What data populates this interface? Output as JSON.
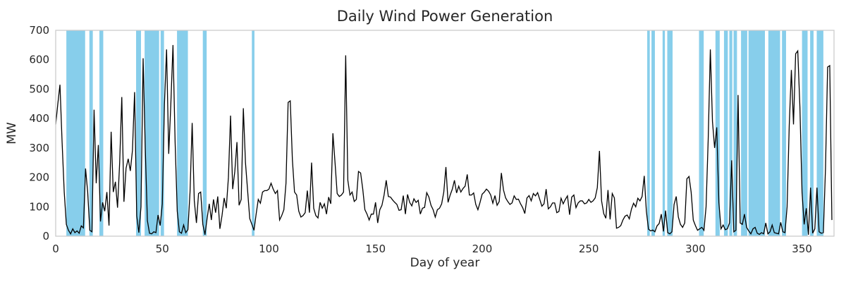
{
  "chart_data": {
    "type": "line",
    "title": "Daily Wind Power Generation",
    "xlabel": "Day of year",
    "ylabel": "MW",
    "xlim": [
      0,
      365
    ],
    "ylim": [
      0,
      700
    ],
    "xticks": [
      0,
      50,
      100,
      150,
      200,
      250,
      300,
      350
    ],
    "yticks": [
      0,
      100,
      200,
      300,
      400,
      500,
      600,
      700
    ],
    "grid": false,
    "legend": "none",
    "line_color": "#000000",
    "band_color": "#87ceeb",
    "text_color": "#262626",
    "spine_color": "#cccccc",
    "x_meaning": "day of year (index of values array)",
    "highlight_bands": [
      [
        5,
        13.8
      ],
      [
        15.8,
        17.4
      ],
      [
        20.5,
        22.3
      ],
      [
        37.7,
        40
      ],
      [
        41.7,
        48.5
      ],
      [
        49.2,
        50.8
      ],
      [
        56.9,
        62
      ],
      [
        69,
        70.8
      ],
      [
        92,
        93.2
      ],
      [
        277.4,
        278.6
      ],
      [
        279.4,
        281
      ],
      [
        284.6,
        285.7
      ],
      [
        286.8,
        289.3
      ],
      [
        301.7,
        303.9
      ],
      [
        309.4,
        311.4
      ],
      [
        313.4,
        315.2
      ],
      [
        315.9,
        317.3
      ],
      [
        317.9,
        319.5
      ],
      [
        321.4,
        324.3
      ],
      [
        324.9,
        332.6
      ],
      [
        334.2,
        339.7
      ],
      [
        340.6,
        342.5
      ],
      [
        350,
        352.6
      ],
      [
        353.8,
        355.4
      ],
      [
        356.9,
        360
      ]
    ],
    "values": [
      380,
      450,
      515,
      320,
      150,
      40,
      20,
      8,
      25,
      12,
      18,
      10,
      35,
      28,
      230,
      150,
      20,
      15,
      430,
      180,
      310,
      50,
      115,
      85,
      150,
      36,
      355,
      150,
      185,
      97,
      250,
      473,
      117,
      231,
      263,
      222,
      292,
      490,
      69,
      12,
      100,
      605,
      300,
      53,
      10,
      8,
      15,
      12,
      72,
      36,
      110,
      450,
      635,
      280,
      450,
      650,
      320,
      85,
      15,
      10,
      38,
      12,
      22,
      150,
      385,
      120,
      45,
      145,
      150,
      40,
      5,
      60,
      110,
      55,
      125,
      80,
      135,
      25,
      70,
      130,
      95,
      200,
      410,
      160,
      220,
      320,
      105,
      125,
      435,
      250,
      155,
      60,
      40,
      20,
      75,
      125,
      112,
      150,
      155,
      155,
      160,
      180,
      160,
      145,
      155,
      55,
      70,
      90,
      180,
      455,
      460,
      260,
      150,
      140,
      85,
      65,
      70,
      80,
      155,
      80,
      250,
      95,
      70,
      62,
      115,
      95,
      110,
      75,
      133,
      110,
      350,
      250,
      145,
      135,
      140,
      150,
      615,
      190,
      140,
      150,
      118,
      125,
      220,
      215,
      160,
      90,
      75,
      55,
      75,
      75,
      115,
      45,
      90,
      105,
      140,
      190,
      135,
      133,
      123,
      115,
      108,
      88,
      90,
      138,
      75,
      142,
      115,
      103,
      127,
      115,
      122,
      75,
      95,
      98,
      148,
      133,
      105,
      90,
      65,
      90,
      95,
      110,
      150,
      235,
      115,
      140,
      160,
      190,
      147,
      170,
      150,
      162,
      170,
      210,
      140,
      140,
      147,
      108,
      90,
      115,
      143,
      150,
      160,
      153,
      140,
      112,
      138,
      105,
      118,
      215,
      157,
      130,
      118,
      108,
      113,
      137,
      125,
      126,
      110,
      97,
      77,
      130,
      138,
      120,
      145,
      137,
      148,
      125,
      102,
      110,
      160,
      93,
      100,
      113,
      113,
      80,
      84,
      129,
      110,
      125,
      137,
      73,
      133,
      140,
      97,
      113,
      120,
      120,
      110,
      113,
      125,
      115,
      120,
      130,
      165,
      290,
      120,
      77,
      61,
      157,
      57,
      145,
      130,
      27,
      30,
      36,
      55,
      68,
      72,
      59,
      92,
      112,
      100,
      129,
      120,
      135,
      205,
      85,
      24,
      18,
      21,
      15,
      35,
      43,
      75,
      16,
      87,
      12,
      8,
      15,
      108,
      135,
      65,
      40,
      30,
      45,
      195,
      203,
      150,
      55,
      36,
      20,
      25,
      30,
      20,
      100,
      330,
      635,
      390,
      300,
      370,
      115,
      25,
      38,
      22,
      25,
      45,
      258,
      15,
      20,
      480,
      45,
      40,
      75,
      30,
      18,
      8,
      25,
      30,
      10,
      6,
      12,
      8,
      45,
      8,
      15,
      38,
      12,
      10,
      8,
      47,
      15,
      12,
      100,
      375,
      565,
      380,
      620,
      630,
      440,
      150,
      40,
      95,
      5,
      165,
      10,
      25,
      165,
      15,
      10,
      12,
      230,
      575,
      580,
      55
    ]
  }
}
